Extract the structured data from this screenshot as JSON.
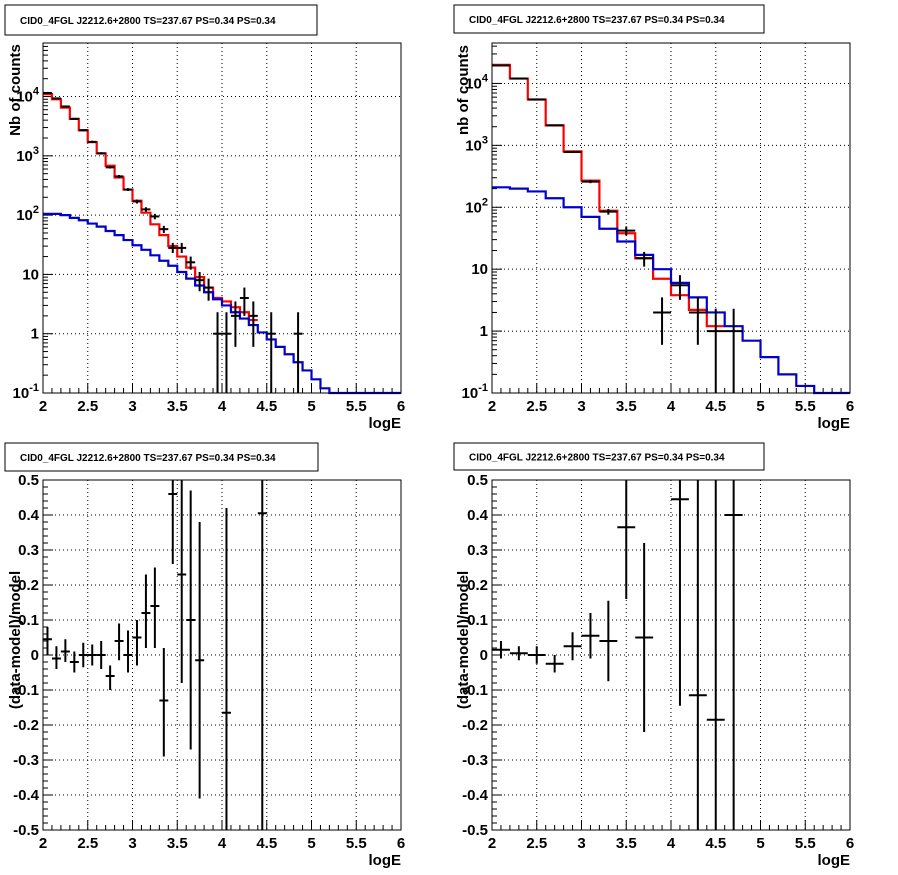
{
  "chart_data": [
    {
      "type": "line",
      "title": "CID0_4FGL J2212.6+2800 TS=237.67 PS=0.34 PS=0.34",
      "xlabel": "logE",
      "ylabel": "Nb of counts",
      "yscale": "log",
      "xlim": [
        2,
        6
      ],
      "ylim": [
        0.1,
        80000
      ],
      "grid": true,
      "x_ticks": [
        "2",
        "2.5",
        "3",
        "3.5",
        "4",
        "4.5",
        "5",
        "5.5",
        "6"
      ],
      "y_ticks": [
        {
          "value": 0.1,
          "base": "10",
          "exp": "-1"
        },
        {
          "value": 1,
          "label": "1"
        },
        {
          "value": 10,
          "label": "10"
        },
        {
          "value": 100,
          "base": "10",
          "exp": "2"
        },
        {
          "value": 1000,
          "base": "10",
          "exp": "3"
        },
        {
          "value": 10000,
          "base": "10",
          "exp": "4"
        }
      ],
      "bin_width": 0.1,
      "series": [
        {
          "color": "#ff0000",
          "kind": "step",
          "x": [
            2.0,
            2.1,
            2.2,
            2.3,
            2.4,
            2.5,
            2.6,
            2.7,
            2.8,
            2.9,
            3.0,
            3.1,
            3.2,
            3.3,
            3.4,
            3.5,
            3.6,
            3.7,
            3.8,
            3.9,
            4.0,
            4.1,
            4.2,
            4.3
          ],
          "values": [
            11000,
            9000,
            6500,
            4200,
            2700,
            1700,
            1100,
            680,
            430,
            270,
            175,
            110,
            70,
            46,
            30,
            20,
            13,
            9,
            6,
            4,
            3.5,
            2.8,
            2.3,
            1.7
          ]
        },
        {
          "color": "#0000cc",
          "kind": "step",
          "x": [
            2.0,
            2.1,
            2.2,
            2.3,
            2.4,
            2.5,
            2.6,
            2.7,
            2.8,
            2.9,
            3.0,
            3.1,
            3.2,
            3.3,
            3.4,
            3.5,
            3.6,
            3.7,
            3.8,
            3.9,
            4.0,
            4.1,
            4.2,
            4.3,
            4.4,
            4.5,
            4.6,
            4.7,
            4.8,
            4.9,
            5.0,
            5.1,
            5.2,
            5.3,
            5.4,
            5.5,
            5.6,
            5.7,
            5.8,
            5.9
          ],
          "values": [
            105,
            105,
            100,
            90,
            82,
            72,
            64,
            54,
            46,
            38,
            31,
            26,
            21,
            17,
            14,
            11,
            8.5,
            6.5,
            5,
            3.8,
            3,
            2.3,
            1.8,
            1.4,
            1.05,
            0.8,
            0.6,
            0.45,
            0.33,
            0.24,
            0.17,
            0.12,
            0.1,
            0.1,
            0.1,
            0.1,
            0.1,
            0.1,
            0.1,
            0.1
          ]
        },
        {
          "color": "#000000",
          "kind": "errorbar",
          "points": [
            {
              "x": 2.05,
              "y": 11500,
              "ylo": 11300,
              "yhi": 11700
            },
            {
              "x": 2.15,
              "y": 9300,
              "ylo": 9100,
              "yhi": 9500
            },
            {
              "x": 2.25,
              "y": 6800,
              "ylo": 6650,
              "yhi": 6950
            },
            {
              "x": 2.35,
              "y": 4200,
              "ylo": 4080,
              "yhi": 4320
            },
            {
              "x": 2.45,
              "y": 2700,
              "ylo": 2600,
              "yhi": 2800
            },
            {
              "x": 2.55,
              "y": 1720,
              "ylo": 1650,
              "yhi": 1800
            },
            {
              "x": 2.65,
              "y": 1100,
              "ylo": 1050,
              "yhi": 1150
            },
            {
              "x": 2.75,
              "y": 640,
              "ylo": 610,
              "yhi": 670
            },
            {
              "x": 2.85,
              "y": 450,
              "ylo": 425,
              "yhi": 475
            },
            {
              "x": 2.95,
              "y": 270,
              "ylo": 255,
              "yhi": 285
            },
            {
              "x": 3.05,
              "y": 170,
              "ylo": 157,
              "yhi": 183
            },
            {
              "x": 3.15,
              "y": 125,
              "ylo": 114,
              "yhi": 136
            },
            {
              "x": 3.25,
              "y": 95,
              "ylo": 85,
              "yhi": 105
            },
            {
              "x": 3.35,
              "y": 58,
              "ylo": 50,
              "yhi": 66
            },
            {
              "x": 3.45,
              "y": 28,
              "ylo": 23,
              "yhi": 34
            },
            {
              "x": 3.55,
              "y": 28,
              "ylo": 23,
              "yhi": 34
            },
            {
              "x": 3.65,
              "y": 16,
              "ylo": 12,
              "yhi": 20
            },
            {
              "x": 3.75,
              "y": 8,
              "ylo": 5.2,
              "yhi": 11
            },
            {
              "x": 3.85,
              "y": 6,
              "ylo": 3.6,
              "yhi": 8.5
            },
            {
              "x": 3.95,
              "y": 1,
              "ylo": 0.1,
              "yhi": 2.3
            },
            {
              "x": 4.05,
              "y": 1,
              "ylo": 0.1,
              "yhi": 2.3
            },
            {
              "x": 4.15,
              "y": 2,
              "ylo": 0.6,
              "yhi": 3.5
            },
            {
              "x": 4.25,
              "y": 4,
              "ylo": 2,
              "yhi": 6
            },
            {
              "x": 4.35,
              "y": 2,
              "ylo": 0.6,
              "yhi": 3.5
            },
            {
              "x": 4.55,
              "y": 1,
              "ylo": 0.1,
              "yhi": 2.3
            },
            {
              "x": 4.85,
              "y": 1,
              "ylo": 0.1,
              "yhi": 2.3
            }
          ]
        }
      ]
    },
    {
      "type": "line",
      "title": "CID0_4FGL J2212.6+2800 TS=237.67 PS=0.34 PS=0.34",
      "xlabel": "logE",
      "ylabel": "nb of counts",
      "yscale": "log",
      "xlim": [
        2,
        6
      ],
      "ylim": [
        0.1,
        45000
      ],
      "grid": true,
      "x_ticks": [
        "2",
        "2.5",
        "3",
        "3.5",
        "4",
        "4.5",
        "5",
        "5.5",
        "6"
      ],
      "y_ticks": [
        {
          "value": 0.1,
          "base": "10",
          "exp": "-1"
        },
        {
          "value": 1,
          "label": "1"
        },
        {
          "value": 10,
          "label": "10"
        },
        {
          "value": 100,
          "base": "10",
          "exp": "2"
        },
        {
          "value": 1000,
          "base": "10",
          "exp": "3"
        },
        {
          "value": 10000,
          "base": "10",
          "exp": "4"
        }
      ],
      "bin_width": 0.2,
      "series": [
        {
          "color": "#ff0000",
          "kind": "step",
          "x": [
            2.0,
            2.2,
            2.4,
            2.6,
            2.8,
            3.0,
            3.2,
            3.4,
            3.6,
            3.8,
            4.0,
            4.2,
            4.4
          ],
          "values": [
            20000,
            12000,
            5500,
            2100,
            800,
            270,
            88,
            38,
            15,
            7,
            3.8,
            2.2,
            1.2
          ]
        },
        {
          "color": "#0000cc",
          "kind": "step",
          "x": [
            2.0,
            2.2,
            2.4,
            2.6,
            2.8,
            3.0,
            3.2,
            3.4,
            3.6,
            3.8,
            4.0,
            4.2,
            4.4,
            4.6,
            4.8,
            5.0,
            5.2,
            5.4,
            5.6,
            5.8
          ],
          "values": [
            210,
            200,
            180,
            140,
            100,
            70,
            45,
            28,
            17,
            10,
            6,
            3.5,
            2.0,
            1.2,
            0.7,
            0.38,
            0.2,
            0.13,
            0.1,
            0.1
          ]
        },
        {
          "color": "#000000",
          "kind": "errorbar",
          "points": [
            {
              "x": 2.1,
              "y": 19500,
              "ylo": 19300,
              "yhi": 19700
            },
            {
              "x": 2.3,
              "y": 12000,
              "ylo": 11850,
              "yhi": 12150
            },
            {
              "x": 2.5,
              "y": 5500,
              "ylo": 5400,
              "yhi": 5600
            },
            {
              "x": 2.7,
              "y": 2100,
              "ylo": 2050,
              "yhi": 2150
            },
            {
              "x": 2.9,
              "y": 780,
              "ylo": 750,
              "yhi": 810
            },
            {
              "x": 3.1,
              "y": 260,
              "ylo": 245,
              "yhi": 275
            },
            {
              "x": 3.3,
              "y": 85,
              "ylo": 76,
              "yhi": 94
            },
            {
              "x": 3.5,
              "y": 42,
              "ylo": 35,
              "yhi": 49
            },
            {
              "x": 3.7,
              "y": 15,
              "ylo": 11,
              "yhi": 19
            },
            {
              "x": 3.9,
              "y": 2,
              "ylo": 0.6,
              "yhi": 3.5
            },
            {
              "x": 4.1,
              "y": 5.5,
              "ylo": 3.2,
              "yhi": 8
            },
            {
              "x": 4.3,
              "y": 2,
              "ylo": 0.6,
              "yhi": 3.5
            },
            {
              "x": 4.5,
              "y": 1,
              "ylo": 0.1,
              "yhi": 2.3
            },
            {
              "x": 4.7,
              "y": 1,
              "ylo": 0.1,
              "yhi": 2.3
            }
          ]
        }
      ]
    },
    {
      "type": "scatter",
      "title": "CID0_4FGL J2212.6+2800 TS=237.67 PS=0.34 PS=0.34",
      "xlabel": "logE",
      "ylabel": "(data-model)/model",
      "yscale": "linear",
      "xlim": [
        2,
        6
      ],
      "ylim": [
        -0.5,
        0.5
      ],
      "grid": true,
      "x_ticks": [
        "2",
        "2.5",
        "3",
        "3.5",
        "4",
        "4.5",
        "5",
        "5.5",
        "6"
      ],
      "y_ticks": [
        "-0.5",
        "-0.4",
        "-0.3",
        "-0.2",
        "-0.1",
        "0",
        "0.1",
        "0.2",
        "0.3",
        "0.4",
        "0.5"
      ],
      "bin_width": 0.1,
      "series": [
        {
          "color": "#000000",
          "kind": "errorbar",
          "points": [
            {
              "x": 2.05,
              "y": 0.045,
              "ylo": 0.0,
              "yhi": 0.08
            },
            {
              "x": 2.15,
              "y": -0.01,
              "ylo": -0.04,
              "yhi": 0.025
            },
            {
              "x": 2.25,
              "y": 0.01,
              "ylo": -0.02,
              "yhi": 0.045
            },
            {
              "x": 2.35,
              "y": -0.02,
              "ylo": -0.05,
              "yhi": 0.01
            },
            {
              "x": 2.45,
              "y": 0.0,
              "ylo": -0.035,
              "yhi": 0.035
            },
            {
              "x": 2.55,
              "y": 0.0,
              "ylo": -0.03,
              "yhi": 0.03
            },
            {
              "x": 2.65,
              "y": 0.0,
              "ylo": -0.04,
              "yhi": 0.04
            },
            {
              "x": 2.75,
              "y": -0.06,
              "ylo": -0.1,
              "yhi": -0.03
            },
            {
              "x": 2.85,
              "y": 0.04,
              "ylo": -0.015,
              "yhi": 0.09
            },
            {
              "x": 2.95,
              "y": 0.0,
              "ylo": -0.05,
              "yhi": 0.07
            },
            {
              "x": 3.05,
              "y": 0.05,
              "ylo": -0.03,
              "yhi": 0.1
            },
            {
              "x": 3.15,
              "y": 0.12,
              "ylo": 0.02,
              "yhi": 0.23
            },
            {
              "x": 3.25,
              "y": 0.14,
              "ylo": 0.02,
              "yhi": 0.25
            },
            {
              "x": 3.35,
              "y": -0.13,
              "ylo": -0.29,
              "yhi": 0.02
            },
            {
              "x": 3.45,
              "y": 0.46,
              "ylo": 0.26,
              "yhi": 0.5
            },
            {
              "x": 3.55,
              "y": 0.23,
              "ylo": -0.08,
              "yhi": 0.5
            },
            {
              "x": 3.65,
              "y": 0.1,
              "ylo": -0.27,
              "yhi": 0.47
            },
            {
              "x": 3.75,
              "y": -0.015,
              "ylo": -0.41,
              "yhi": 0.38
            },
            {
              "x": 4.05,
              "y": -0.165,
              "ylo": -0.5,
              "yhi": 0.42
            },
            {
              "x": 4.45,
              "y": 0.405,
              "ylo": -0.5,
              "yhi": 0.5
            }
          ]
        }
      ]
    },
    {
      "type": "scatter",
      "title": "CID0_4FGL J2212.6+2800 TS=237.67 PS=0.34 PS=0.34",
      "xlabel": "logE",
      "ylabel": "(data-model)/model",
      "yscale": "linear",
      "xlim": [
        2,
        6
      ],
      "ylim": [
        -0.5,
        0.5
      ],
      "grid": true,
      "x_ticks": [
        "2",
        "2.5",
        "3",
        "3.5",
        "4",
        "4.5",
        "5",
        "5.5",
        "6"
      ],
      "y_ticks": [
        "-0.5",
        "-0.4",
        "-0.3",
        "-0.2",
        "-0.1",
        "0",
        "0.1",
        "0.2",
        "0.3",
        "0.4",
        "0.5"
      ],
      "bin_width": 0.2,
      "series": [
        {
          "color": "#000000",
          "kind": "errorbar",
          "points": [
            {
              "x": 2.1,
              "y": 0.015,
              "ylo": -0.01,
              "yhi": 0.04
            },
            {
              "x": 2.3,
              "y": 0.005,
              "ylo": -0.015,
              "yhi": 0.025
            },
            {
              "x": 2.5,
              "y": 0.0,
              "ylo": -0.025,
              "yhi": 0.025
            },
            {
              "x": 2.7,
              "y": -0.025,
              "ylo": -0.05,
              "yhi": 0.0
            },
            {
              "x": 2.9,
              "y": 0.025,
              "ylo": -0.015,
              "yhi": 0.065
            },
            {
              "x": 3.1,
              "y": 0.055,
              "ylo": -0.01,
              "yhi": 0.12
            },
            {
              "x": 3.3,
              "y": 0.04,
              "ylo": -0.075,
              "yhi": 0.155
            },
            {
              "x": 3.5,
              "y": 0.365,
              "ylo": 0.16,
              "yhi": 0.5
            },
            {
              "x": 3.7,
              "y": 0.05,
              "ylo": -0.22,
              "yhi": 0.32
            },
            {
              "x": 4.1,
              "y": 0.445,
              "ylo": -0.145,
              "yhi": 0.5
            },
            {
              "x": 4.3,
              "y": -0.115,
              "ylo": -0.5,
              "yhi": 0.5
            },
            {
              "x": 4.5,
              "y": -0.185,
              "ylo": -0.5,
              "yhi": 0.5
            },
            {
              "x": 4.7,
              "y": 0.4,
              "ylo": -0.5,
              "yhi": 0.5
            }
          ]
        }
      ]
    }
  ]
}
